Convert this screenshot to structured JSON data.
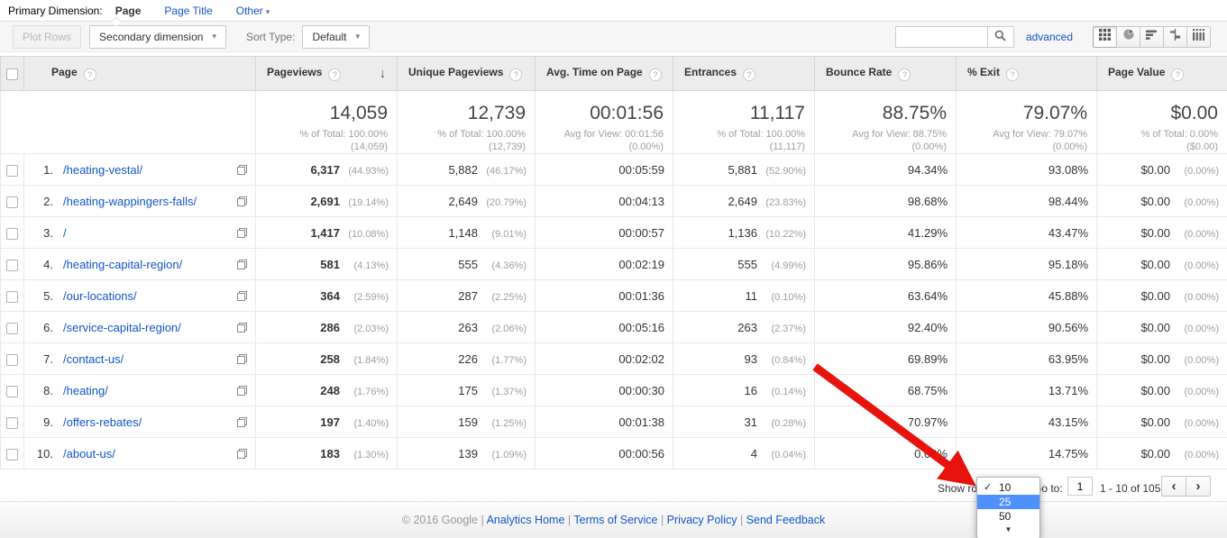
{
  "primary_dimension": {
    "label": "Primary Dimension:",
    "tabs": [
      {
        "label": "Page",
        "active": true
      },
      {
        "label": "Page Title",
        "active": false
      },
      {
        "label": "Other",
        "active": false,
        "has_caret": true
      }
    ]
  },
  "toolbar": {
    "plot_rows_label": "Plot Rows",
    "secondary_dimension_label": "Secondary dimension",
    "sort_type_label": "Sort Type:",
    "sort_type_value": "Default",
    "search_value": "",
    "advanced_label": "advanced",
    "view_buttons": [
      "table-view",
      "percentage-view",
      "performance-view",
      "comparison-view",
      "pivot-view"
    ],
    "active_view": "table-view"
  },
  "table": {
    "columns": [
      {
        "label": "Page",
        "help": true
      },
      {
        "label": "Pageviews",
        "help": true,
        "sorted_desc": true
      },
      {
        "label": "Unique Pageviews",
        "help": true
      },
      {
        "label": "Avg. Time on Page",
        "help": true
      },
      {
        "label": "Entrances",
        "help": true
      },
      {
        "label": "Bounce Rate",
        "help": true
      },
      {
        "label": "% Exit",
        "help": true
      },
      {
        "label": "Page Value",
        "help": true
      }
    ],
    "totals": [
      {
        "value": "14,059",
        "sub1": "% of Total: 100.00%",
        "sub2": "(14,059)"
      },
      {
        "value": "12,739",
        "sub1": "% of Total: 100.00%",
        "sub2": "(12,739)"
      },
      {
        "value": "00:01:56",
        "sub1": "Avg for View: 00:01:56",
        "sub2": "(0.00%)"
      },
      {
        "value": "11,117",
        "sub1": "% of Total: 100.00%",
        "sub2": "(11,117)"
      },
      {
        "value": "88.75%",
        "sub1": "Avg for View: 88.75%",
        "sub2": "(0.00%)"
      },
      {
        "value": "79.07%",
        "sub1": "Avg for View: 79.07%",
        "sub2": "(0.00%)"
      },
      {
        "value": "$0.00",
        "sub1": "% of Total: 0.00%",
        "sub2": "($0.00)"
      }
    ],
    "rows": [
      {
        "num": "1.",
        "page": "/heating-vestal/",
        "pageviews": "6,317",
        "pageviews_pct": "(44.93%)",
        "unique": "5,882",
        "unique_pct": "(46.17%)",
        "avg_time": "00:05:59",
        "entrances": "5,881",
        "entrances_pct": "(52.90%)",
        "bounce_rate": "94.34%",
        "exit": "93.08%",
        "page_value": "$0.00",
        "page_value_pct": "(0.00%)"
      },
      {
        "num": "2.",
        "page": "/heating-wappingers-falls/",
        "pageviews": "2,691",
        "pageviews_pct": "(19.14%)",
        "unique": "2,649",
        "unique_pct": "(20.79%)",
        "avg_time": "00:04:13",
        "entrances": "2,649",
        "entrances_pct": "(23.83%)",
        "bounce_rate": "98.68%",
        "exit": "98.44%",
        "page_value": "$0.00",
        "page_value_pct": "(0.00%)"
      },
      {
        "num": "3.",
        "page": "/",
        "pageviews": "1,417",
        "pageviews_pct": "(10.08%)",
        "unique": "1,148",
        "unique_pct": "(9.01%)",
        "avg_time": "00:00:57",
        "entrances": "1,136",
        "entrances_pct": "(10.22%)",
        "bounce_rate": "41.29%",
        "exit": "43.47%",
        "page_value": "$0.00",
        "page_value_pct": "(0.00%)"
      },
      {
        "num": "4.",
        "page": "/heating-capital-region/",
        "pageviews": "581",
        "pageviews_pct": "(4.13%)",
        "unique": "555",
        "unique_pct": "(4.36%)",
        "avg_time": "00:02:19",
        "entrances": "555",
        "entrances_pct": "(4.99%)",
        "bounce_rate": "95.86%",
        "exit": "95.18%",
        "page_value": "$0.00",
        "page_value_pct": "(0.00%)"
      },
      {
        "num": "5.",
        "page": "/our-locations/",
        "pageviews": "364",
        "pageviews_pct": "(2.59%)",
        "unique": "287",
        "unique_pct": "(2.25%)",
        "avg_time": "00:01:36",
        "entrances": "11",
        "entrances_pct": "(0.10%)",
        "bounce_rate": "63.64%",
        "exit": "45.88%",
        "page_value": "$0.00",
        "page_value_pct": "(0.00%)"
      },
      {
        "num": "6.",
        "page": "/service-capital-region/",
        "pageviews": "286",
        "pageviews_pct": "(2.03%)",
        "unique": "263",
        "unique_pct": "(2.06%)",
        "avg_time": "00:05:16",
        "entrances": "263",
        "entrances_pct": "(2.37%)",
        "bounce_rate": "92.40%",
        "exit": "90.56%",
        "page_value": "$0.00",
        "page_value_pct": "(0.00%)"
      },
      {
        "num": "7.",
        "page": "/contact-us/",
        "pageviews": "258",
        "pageviews_pct": "(1.84%)",
        "unique": "226",
        "unique_pct": "(1.77%)",
        "avg_time": "00:02:02",
        "entrances": "93",
        "entrances_pct": "(0.84%)",
        "bounce_rate": "69.89%",
        "exit": "63.95%",
        "page_value": "$0.00",
        "page_value_pct": "(0.00%)"
      },
      {
        "num": "8.",
        "page": "/heating/",
        "pageviews": "248",
        "pageviews_pct": "(1.76%)",
        "unique": "175",
        "unique_pct": "(1.37%)",
        "avg_time": "00:00:30",
        "entrances": "16",
        "entrances_pct": "(0.14%)",
        "bounce_rate": "68.75%",
        "exit": "13.71%",
        "page_value": "$0.00",
        "page_value_pct": "(0.00%)"
      },
      {
        "num": "9.",
        "page": "/offers-rebates/",
        "pageviews": "197",
        "pageviews_pct": "(1.40%)",
        "unique": "159",
        "unique_pct": "(1.25%)",
        "avg_time": "00:01:38",
        "entrances": "31",
        "entrances_pct": "(0.28%)",
        "bounce_rate": "70.97%",
        "exit": "43.15%",
        "page_value": "$0.00",
        "page_value_pct": "(0.00%)"
      },
      {
        "num": "10.",
        "page": "/about-us/",
        "pageviews": "183",
        "pageviews_pct": "(1.30%)",
        "unique": "139",
        "unique_pct": "(1.09%)",
        "avg_time": "00:00:56",
        "entrances": "4",
        "entrances_pct": "(0.04%)",
        "bounce_rate": "0.00%",
        "exit": "14.75%",
        "page_value": "$0.00",
        "page_value_pct": "(0.00%)"
      }
    ]
  },
  "pagination": {
    "show_rows_label": "Show rows",
    "go_to_label": "Go to:",
    "go_to_value": "1",
    "range_label": "1 - 10 of 105"
  },
  "show_rows_menu": {
    "options": [
      {
        "label": "10",
        "checked": true
      },
      {
        "label": "25",
        "highlighted": true
      },
      {
        "label": "50"
      }
    ]
  },
  "footer": {
    "copyright": "© 2016 Google",
    "separator": "|",
    "links": [
      "Analytics Home",
      "Terms of Service",
      "Privacy Policy",
      "Send Feedback"
    ]
  },
  "icons": {
    "check": "✓",
    "scroll_down": "▼",
    "sort_desc": "↓",
    "caret": "▾",
    "prev": "‹",
    "next": "›"
  },
  "colors": {
    "link_blue": "#1155cc",
    "menu_highlight_blue": "#4d90fe",
    "annotation_red": "#e8130d",
    "header_gray": "#ececec"
  }
}
